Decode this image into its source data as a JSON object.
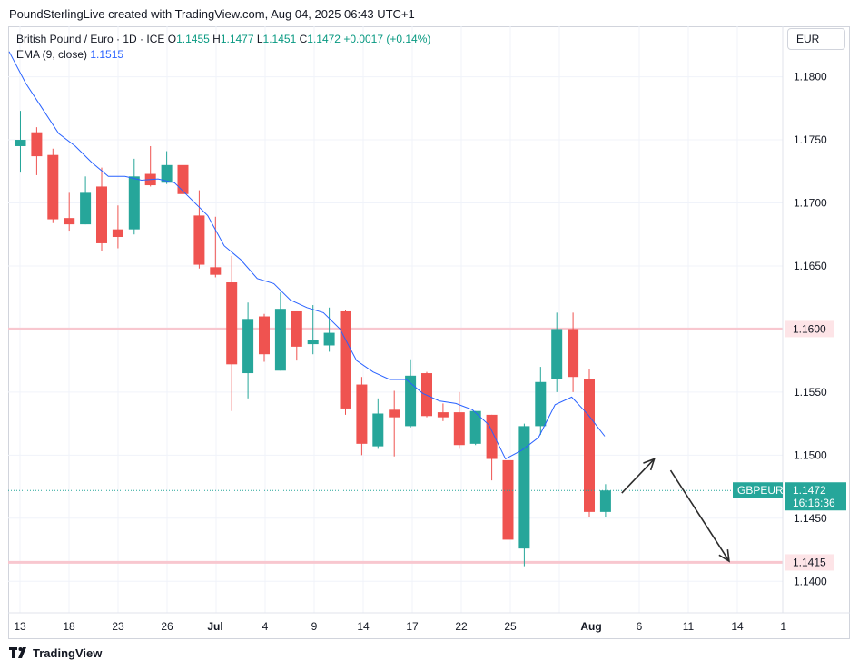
{
  "header": {
    "attribution": "PoundSterlingLive created with TradingView.com, Aug 04, 2025 06:43 UTC+1"
  },
  "legend": {
    "title_prefix": "British Pound / Euro · 1D · ICE",
    "o_label": "O",
    "o_value": "1.1455",
    "h_label": "H",
    "h_value": "1.1477",
    "l_label": "L",
    "l_value": "1.1451",
    "c_label": "C",
    "c_value": "1.1472",
    "change": "+0.0017 (+0.14%)",
    "ema_label": "EMA (9, close)",
    "ema_value": "1.1515"
  },
  "currency_button": "EUR",
  "footer": {
    "brand": "TradingView"
  },
  "colors": {
    "up": "#26a69a",
    "down": "#ef5350",
    "ema": "#2962ff",
    "hline": "#f8c7cf",
    "hline_label_bg": "#fde4e7",
    "last_price_bg": "#26a69a",
    "arrow": "#2b2b2b"
  },
  "chart_data": {
    "type": "candlestick",
    "symbol": "GBPEUR",
    "interval": "1D",
    "y_axis": {
      "range": [
        1.1375,
        1.184
      ],
      "ticks": [
        1.14,
        1.145,
        1.15,
        1.155,
        1.16,
        1.165,
        1.17,
        1.175,
        1.18
      ],
      "tick_labels": [
        "1.1400",
        "1.1450",
        "1.1500",
        "1.1550",
        "1.1600",
        "1.1650",
        "1.1700",
        "1.1750",
        "1.1800"
      ]
    },
    "x_axis": {
      "tick_labels": [
        "13",
        "18",
        "23",
        "26",
        "Jul",
        "4",
        "9",
        "14",
        "17",
        "22",
        "25",
        "Aug",
        "6",
        "11",
        "14",
        "1"
      ],
      "bold_labels": [
        "Jul",
        "Aug"
      ]
    },
    "candles": [
      {
        "o": 1.1745,
        "h": 1.1773,
        "l": 1.1724,
        "c": 1.175
      },
      {
        "o": 1.1756,
        "h": 1.176,
        "l": 1.1722,
        "c": 1.1737
      },
      {
        "o": 1.1738,
        "h": 1.1743,
        "l": 1.1684,
        "c": 1.1687
      },
      {
        "o": 1.1688,
        "h": 1.1708,
        "l": 1.1678,
        "c": 1.1683
      },
      {
        "o": 1.1683,
        "h": 1.1721,
        "l": 1.1683,
        "c": 1.1708
      },
      {
        "o": 1.1713,
        "h": 1.1728,
        "l": 1.1662,
        "c": 1.1668
      },
      {
        "o": 1.1679,
        "h": 1.1698,
        "l": 1.1664,
        "c": 1.1673
      },
      {
        "o": 1.1679,
        "h": 1.1735,
        "l": 1.1675,
        "c": 1.1721
      },
      {
        "o": 1.1723,
        "h": 1.1745,
        "l": 1.1713,
        "c": 1.1714
      },
      {
        "o": 1.1716,
        "h": 1.1741,
        "l": 1.1715,
        "c": 1.173
      },
      {
        "o": 1.173,
        "h": 1.1752,
        "l": 1.1692,
        "c": 1.1707
      },
      {
        "o": 1.169,
        "h": 1.171,
        "l": 1.1648,
        "c": 1.1651
      },
      {
        "o": 1.1649,
        "h": 1.1689,
        "l": 1.1641,
        "c": 1.1643
      },
      {
        "o": 1.1637,
        "h": 1.1658,
        "l": 1.1535,
        "c": 1.1572
      },
      {
        "o": 1.1565,
        "h": 1.1621,
        "l": 1.1545,
        "c": 1.1608
      },
      {
        "o": 1.161,
        "h": 1.1612,
        "l": 1.1574,
        "c": 1.158
      },
      {
        "o": 1.1567,
        "h": 1.1629,
        "l": 1.1567,
        "c": 1.1616
      },
      {
        "o": 1.1614,
        "h": 1.1614,
        "l": 1.1575,
        "c": 1.1586
      },
      {
        "o": 1.1588,
        "h": 1.1619,
        "l": 1.158,
        "c": 1.1591
      },
      {
        "o": 1.1587,
        "h": 1.1617,
        "l": 1.1582,
        "c": 1.1597
      },
      {
        "o": 1.1614,
        "h": 1.1615,
        "l": 1.1532,
        "c": 1.1537
      },
      {
        "o": 1.1556,
        "h": 1.1562,
        "l": 1.15,
        "c": 1.1509
      },
      {
        "o": 1.1507,
        "h": 1.1545,
        "l": 1.1505,
        "c": 1.1533
      },
      {
        "o": 1.1536,
        "h": 1.1551,
        "l": 1.1499,
        "c": 1.153
      },
      {
        "o": 1.1523,
        "h": 1.1576,
        "l": 1.1522,
        "c": 1.1563
      },
      {
        "o": 1.1565,
        "h": 1.1566,
        "l": 1.153,
        "c": 1.1531
      },
      {
        "o": 1.1534,
        "h": 1.1541,
        "l": 1.1527,
        "c": 1.153
      },
      {
        "o": 1.1534,
        "h": 1.155,
        "l": 1.1505,
        "c": 1.1508
      },
      {
        "o": 1.1509,
        "h": 1.1535,
        "l": 1.1508,
        "c": 1.1535
      },
      {
        "o": 1.1532,
        "h": 1.1532,
        "l": 1.148,
        "c": 1.1497
      },
      {
        "o": 1.1496,
        "h": 1.1497,
        "l": 1.143,
        "c": 1.1433
      },
      {
        "o": 1.1426,
        "h": 1.1525,
        "l": 1.1412,
        "c": 1.1523
      },
      {
        "o": 1.1523,
        "h": 1.157,
        "l": 1.1516,
        "c": 1.1558
      },
      {
        "o": 1.156,
        "h": 1.1613,
        "l": 1.155,
        "c": 1.16
      },
      {
        "o": 1.16,
        "h": 1.1613,
        "l": 1.155,
        "c": 1.1562
      },
      {
        "o": 1.156,
        "h": 1.1568,
        "l": 1.1451,
        "c": 1.1455
      },
      {
        "o": 1.1455,
        "h": 1.1477,
        "l": 1.1451,
        "c": 1.1472
      }
    ],
    "ema": {
      "name": "EMA (9, close)",
      "values": [
        1.182,
        1.1795,
        1.1775,
        1.1755,
        1.1745,
        1.1732,
        1.1721,
        1.1721,
        1.1718,
        1.1719,
        1.1716,
        1.1703,
        1.169,
        1.1666,
        1.1655,
        1.164,
        1.1636,
        1.1623,
        1.1617,
        1.1613,
        1.16,
        1.1575,
        1.1566,
        1.156,
        1.156,
        1.1549,
        1.1543,
        1.1541,
        1.1536,
        1.1524,
        1.1497,
        1.1504,
        1.1514,
        1.154,
        1.1546,
        1.1532,
        1.1515
      ]
    },
    "horizontal_lines": [
      {
        "price": 1.16,
        "label": "1.1600"
      },
      {
        "price": 1.1415,
        "label": "1.1415"
      }
    ],
    "last_price": {
      "value": 1.1472,
      "label": "1.1472",
      "symbol_tag": "GBPEUR",
      "countdown": "16:16:36"
    },
    "annotations": [
      {
        "type": "arrow",
        "from_bar": 37,
        "from_price": 1.147,
        "to_bar": 39,
        "to_price": 1.1497
      },
      {
        "type": "arrow",
        "from_bar": 40,
        "from_price": 1.1488,
        "to_bar": 43.6,
        "to_price": 1.1416
      }
    ]
  }
}
